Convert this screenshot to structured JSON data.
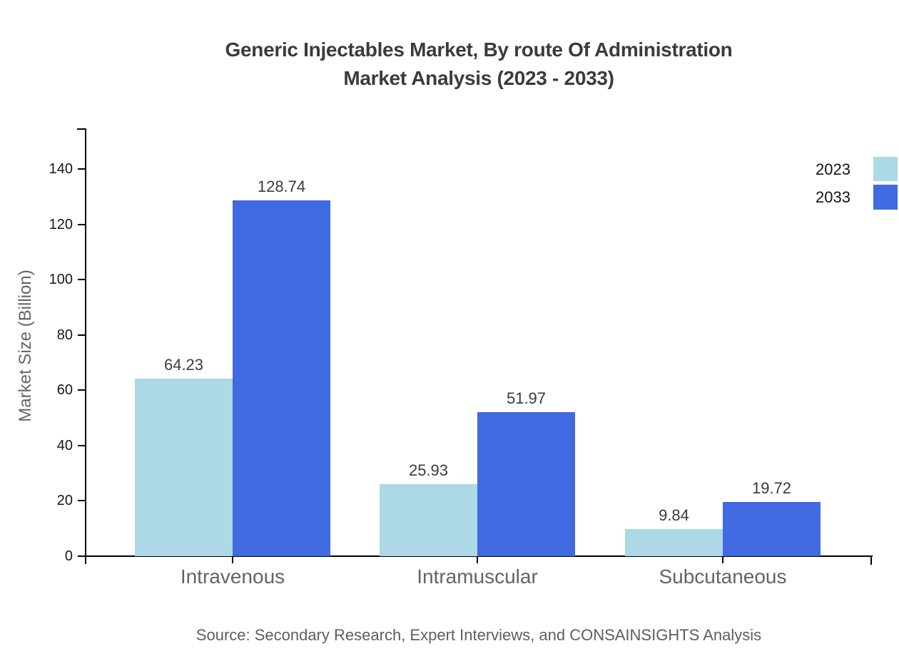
{
  "header": {
    "title_line1": "Generic Injectables Market, By route Of Administration",
    "title_line2": "Market Analysis (2023 - 2033)"
  },
  "chart_data": {
    "type": "bar",
    "title": "Generic Injectables Market, By route Of Administration Market Analysis (2023 - 2033)",
    "xlabel": "",
    "ylabel": "Market Size (Billion)",
    "categories": [
      "Intravenous",
      "Intramuscular",
      "Subcutaneous"
    ],
    "series": [
      {
        "name": "2023",
        "color": "#ADD8E6",
        "values": [
          64.23,
          25.93,
          9.84
        ]
      },
      {
        "name": "2033",
        "color": "#4169E1",
        "values": [
          128.74,
          51.97,
          19.72
        ]
      }
    ],
    "value_label_decimals": 2,
    "y_ticks": [
      0,
      20,
      40,
      60,
      80,
      100,
      120,
      140
    ],
    "ylim": [
      0,
      155
    ],
    "grid": false,
    "legend_position": "top-right",
    "axis_color": "#000000",
    "tick_label_color": "#181818",
    "category_label_color": "#646464",
    "value_label_color": "#3a3a3a"
  },
  "footer": {
    "source": "Source: Secondary Research, Expert Interviews, and CONSAINSIGHTS Analysis"
  }
}
